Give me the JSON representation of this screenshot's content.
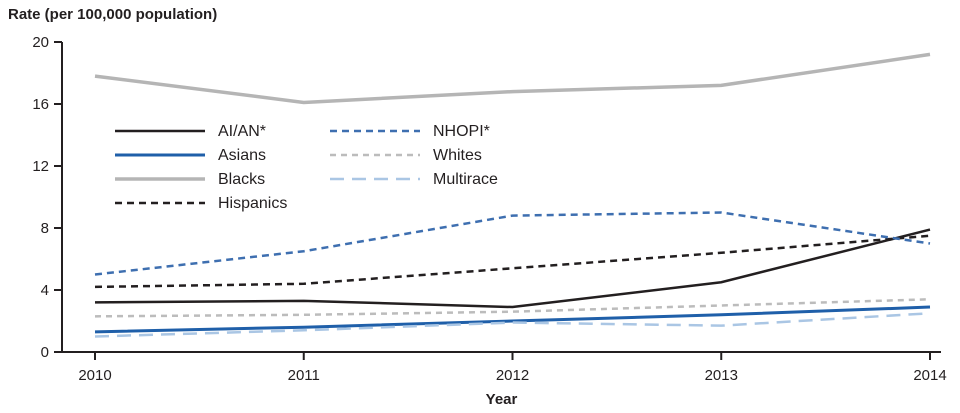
{
  "chart_data": {
    "type": "line",
    "title": "Rate (per 100,000 population)",
    "xlabel": "Year",
    "ylabel": "Rate (per 100,000 population)",
    "x": [
      2010,
      2011,
      2012,
      2013,
      2014
    ],
    "ylim": [
      0,
      20
    ],
    "yticks": [
      0,
      4,
      8,
      12,
      16,
      20
    ],
    "grid": false,
    "legend_position": "inside top-left, two columns",
    "series": [
      {
        "name": "AI/AN*",
        "values": [
          3.2,
          3.3,
          2.9,
          4.5,
          7.9
        ],
        "color": "#231f20",
        "dash": "none",
        "width": 2.5,
        "legend_column": 0
      },
      {
        "name": "Asians",
        "values": [
          1.3,
          1.6,
          2.0,
          2.4,
          2.9
        ],
        "color": "#1f5fa9",
        "dash": "none",
        "width": 3,
        "legend_column": 0
      },
      {
        "name": "Blacks",
        "values": [
          17.8,
          16.1,
          16.8,
          17.2,
          19.2
        ],
        "color": "#b5b5b5",
        "dash": "none",
        "width": 3.5,
        "legend_column": 0
      },
      {
        "name": "Hispanics",
        "values": [
          4.2,
          4.4,
          5.4,
          6.4,
          7.5
        ],
        "color": "#231f20",
        "dash": "7,5",
        "width": 2.5,
        "legend_column": 0
      },
      {
        "name": "NHOPI*",
        "values": [
          5.0,
          6.5,
          8.8,
          9.0,
          7.0
        ],
        "color": "#3e6fb0",
        "dash": "7,5",
        "width": 2.5,
        "legend_column": 1
      },
      {
        "name": "Whites",
        "values": [
          2.3,
          2.4,
          2.6,
          3.0,
          3.4
        ],
        "color": "#bcbcbc",
        "dash": "6,5",
        "width": 2.5,
        "legend_column": 1
      },
      {
        "name": "Multirace",
        "values": [
          1.0,
          1.4,
          1.9,
          1.7,
          2.5
        ],
        "color": "#aac6e4",
        "dash": "14,8",
        "width": 2.5,
        "legend_column": 1
      }
    ]
  },
  "colors": {
    "axis": "#231f20",
    "background": "#ffffff"
  }
}
